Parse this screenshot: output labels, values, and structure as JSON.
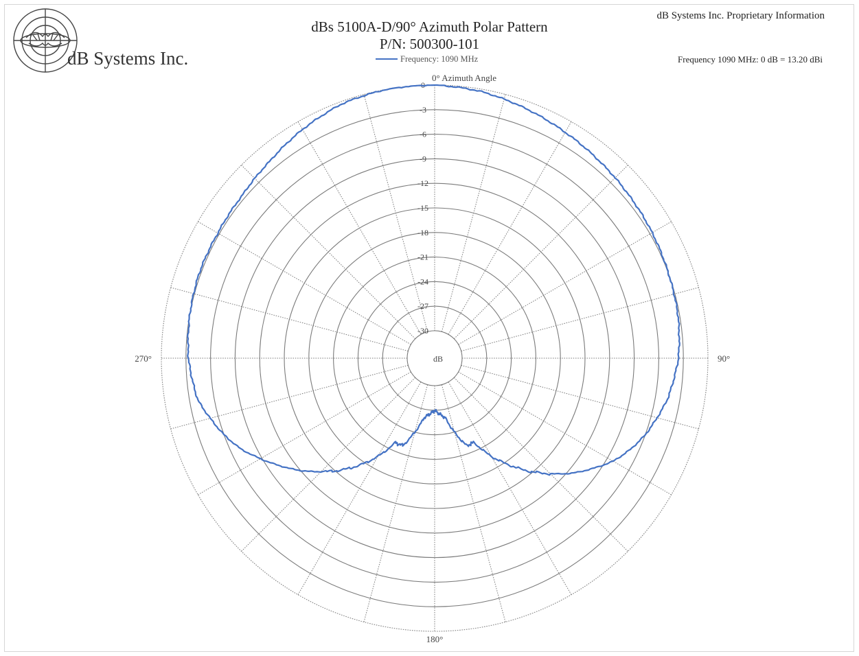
{
  "header": {
    "company": "dB Systems Inc.",
    "title_line1": "dBs 5100A-D/90° Azimuth Polar Pattern",
    "title_line2": "P/N: 500300-101",
    "proprietary": "dB Systems Inc. Proprietary Information",
    "frequency_note": "Frequency 1090 MHz: 0 dB = 13.20 dBi"
  },
  "colors": {
    "series": "#4472c4",
    "grid": "#7a7a7a",
    "text": "#222222"
  },
  "chart_data": {
    "type": "line",
    "coordinate_system": "polar",
    "angle_unit": "degrees",
    "angle_zero": "top",
    "angle_direction": "clockwise",
    "radial_range": [
      -30,
      0
    ],
    "radial_unit": "dB",
    "radial_ticks": [
      0,
      -3,
      -6,
      -9,
      -12,
      -15,
      -18,
      -21,
      -24,
      -27,
      -30
    ],
    "radial_tick_labels": [
      "0",
      "-3",
      "-6",
      "-9",
      "-12",
      "-15",
      "-18",
      "-21",
      "-24",
      "-27",
      "-30"
    ],
    "radial_unit_label": "dB",
    "angle_ticks": [
      0,
      15,
      30,
      45,
      60,
      75,
      90,
      105,
      120,
      135,
      150,
      165,
      180,
      195,
      210,
      225,
      240,
      255,
      270,
      285,
      300,
      315,
      330,
      345
    ],
    "angle_labels": [
      {
        "angle": 0,
        "text": "0° Azimuth Angle"
      },
      {
        "angle": 90,
        "text": "90°"
      },
      {
        "angle": 180,
        "text": "180°"
      },
      {
        "angle": 270,
        "text": "270°"
      }
    ],
    "grid": true,
    "legend_position": "top-center",
    "series": [
      {
        "name": "Frequency: 1090 MHz",
        "angles": [
          0,
          10,
          20,
          30,
          40,
          50,
          60,
          70,
          80,
          90,
          100,
          110,
          115,
          120,
          130,
          140,
          145,
          150,
          155,
          160,
          165,
          170,
          175,
          180,
          185,
          190,
          195,
          200,
          205,
          210,
          215,
          220,
          230,
          240,
          245,
          250,
          260,
          270,
          280,
          290,
          300,
          310,
          320,
          330,
          340,
          350,
          360
        ],
        "values": [
          0,
          -0.3,
          -0.9,
          -1.5,
          -2.0,
          -2.4,
          -2.7,
          -3.0,
          -3.2,
          -3.6,
          -4.5,
          -6.0,
          -7.0,
          -8.2,
          -11.5,
          -15.3,
          -17.4,
          -19.5,
          -22.0,
          -22.0,
          -24.0,
          -26.0,
          -26.5,
          -27.0,
          -26.5,
          -26.0,
          -24.0,
          -22.0,
          -22.0,
          -19.5,
          -17.4,
          -15.5,
          -12.0,
          -8.8,
          -7.2,
          -6.0,
          -4.0,
          -3.3,
          -3.0,
          -2.8,
          -2.8,
          -2.6,
          -2.0,
          -1.1,
          -0.3,
          0,
          0
        ]
      }
    ]
  }
}
